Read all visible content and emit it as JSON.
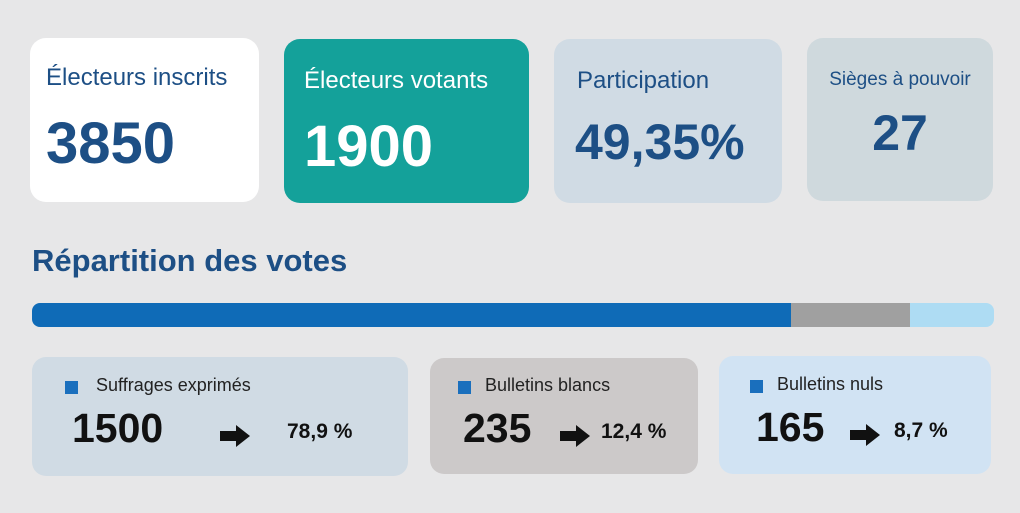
{
  "stats": {
    "inscrits": {
      "label": "Électeurs inscrits",
      "value": "3850"
    },
    "votants": {
      "label": "Électeurs votants",
      "value": "1900"
    },
    "participation": {
      "label": "Participation",
      "value": "49,35%"
    },
    "sieges": {
      "label": "Sièges à pouvoir",
      "value": "27"
    }
  },
  "section_title": "Répartition des votes",
  "distribution": [
    {
      "label": "Suffrages exprimés",
      "value": "1500",
      "percent": "78,9 %",
      "share": 78.9,
      "color": "#0f6bb7"
    },
    {
      "label": "Bulletins blancs",
      "value": "235",
      "percent": "12,4 %",
      "share": 12.4,
      "color": "#a0a0a0"
    },
    {
      "label": "Bulletins nuls",
      "value": "165",
      "percent": "8,7 %",
      "share": 8.7,
      "color": "#aedcf3"
    }
  ],
  "colors": {
    "primary": "#1d4f85",
    "teal": "#14a19a",
    "legend_square": "#1a6fbd"
  },
  "icons": {
    "arrow": "arrow-right-icon",
    "legend": "square-icon"
  }
}
